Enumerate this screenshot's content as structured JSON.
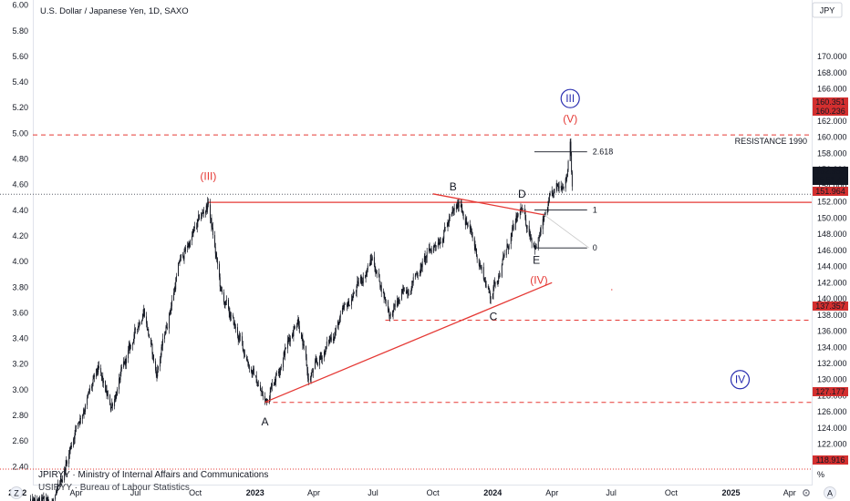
{
  "header": {
    "title": "U.S. Dollar / Japanese Yen, 1D, SAXO",
    "currency_button": "JPY"
  },
  "footer": {
    "source_line_1": "JPIRYY · Ministry of Internal Affairs and Communications",
    "source_line_2": "USIRYY · Bureau of Labour Statistics",
    "z_button": "Z",
    "a_button": "A",
    "percent_button": "%"
  },
  "colors": {
    "candle": "#131722",
    "annotation_red": "#e53935",
    "annotation_dark": "#131722",
    "circle_blue": "#2a2eb0",
    "price_tag_red": "#d32f2f",
    "price_tag_dark": "#131722"
  },
  "icons": [
    "settings-gear-icon"
  ],
  "chart_data": {
    "type": "candlestick",
    "title": "U.S. Dollar / Japanese Yen, 1D, SAXO",
    "x_ticks": [
      "2022",
      "Apr",
      "Jul",
      "Oct",
      "2023",
      "Apr",
      "Jul",
      "Oct",
      "2024",
      "Apr",
      "Jul",
      "Oct",
      "2025",
      "Apr"
    ],
    "right_axis": {
      "label": "JPY",
      "range": [
        117,
        177
      ],
      "ticks": [
        "170.000",
        "168.000",
        "166.000",
        "164.000",
        "162.000",
        "160.000",
        "158.000",
        "156.000",
        "154.000",
        "152.000",
        "150.000",
        "148.000",
        "146.000",
        "144.000",
        "142.000",
        "140.000",
        "138.000",
        "136.000",
        "134.000",
        "132.000",
        "130.000",
        "128.000",
        "126.000",
        "124.000",
        "122.000",
        "120.000"
      ]
    },
    "left_axis": {
      "range": [
        2.26,
        6.04
      ],
      "ticks": [
        "6.00",
        "5.80",
        "5.60",
        "5.40",
        "5.20",
        "5.00",
        "4.80",
        "4.60",
        "4.40",
        "4.20",
        "4.00",
        "3.80",
        "3.60",
        "3.40",
        "3.20",
        "3.00",
        "2.80",
        "2.60",
        "2.40"
      ]
    },
    "price_tags": [
      {
        "value": "160.351",
        "style": "red"
      },
      {
        "value": "160.236",
        "style": "red"
      },
      {
        "value": "152.952",
        "style": "dark",
        "sub": "05:51:40"
      },
      {
        "value": "151.964",
        "style": "red"
      },
      {
        "value": "137.357",
        "style": "red"
      },
      {
        "value": "127.177",
        "style": "red"
      },
      {
        "value": "118.916",
        "style": "red"
      }
    ],
    "anchor_points": [
      {
        "date": "2022-01-20",
        "price": 114.5
      },
      {
        "date": "2022-03-01",
        "price": 115.0
      },
      {
        "date": "2022-03-31",
        "price": 124.0
      },
      {
        "date": "2022-05-05",
        "price": 131.0
      },
      {
        "date": "2022-05-24",
        "price": 126.5
      },
      {
        "date": "2022-07-14",
        "price": 139.0
      },
      {
        "date": "2022-08-02",
        "price": 130.5
      },
      {
        "date": "2022-09-07",
        "price": 144.5
      },
      {
        "date": "2022-10-21",
        "price": 151.9
      },
      {
        "date": "2022-11-10",
        "price": 140.5
      },
      {
        "date": "2023-01-16",
        "price": 127.2
      },
      {
        "date": "2023-03-08",
        "price": 137.9
      },
      {
        "date": "2023-03-24",
        "price": 129.8
      },
      {
        "date": "2023-06-30",
        "price": 145.0
      },
      {
        "date": "2023-07-28",
        "price": 138.0
      },
      {
        "date": "2023-11-13",
        "price": 151.9
      },
      {
        "date": "2023-12-28",
        "price": 140.3
      },
      {
        "date": "2024-02-13",
        "price": 150.9
      },
      {
        "date": "2024-03-08",
        "price": 146.5
      },
      {
        "date": "2024-03-28",
        "price": 151.8
      },
      {
        "date": "2024-04-24",
        "price": 155.5
      },
      {
        "date": "2024-04-29",
        "price": 160.2
      },
      {
        "date": "2024-05-03",
        "price": 152.95
      }
    ],
    "horizontal_levels": [
      {
        "price": 160.3,
        "style": "dashed-red",
        "label": "RESISTANCE 1990"
      },
      {
        "price": 151.95,
        "style": "solid-red"
      },
      {
        "price": 152.95,
        "style": "dotted-dark"
      },
      {
        "price": 137.36,
        "style": "dashed-red"
      },
      {
        "price": 127.18,
        "style": "dashed-red"
      },
      {
        "price": 118.92,
        "style": "dotted-red"
      }
    ],
    "trendlines": [
      {
        "from": {
          "date": "2023-01-16",
          "price": 127.2
        },
        "to": {
          "date": "2024-04-01",
          "price": 142.0
        },
        "color": "red"
      },
      {
        "from": {
          "date": "2023-10-01",
          "price": 153.0
        },
        "to": {
          "date": "2024-03-20",
          "price": 150.4
        },
        "color": "red"
      }
    ],
    "fibonacci": {
      "levels": [
        {
          "label": "2.618",
          "price": 158.2
        },
        {
          "label": "1",
          "price": 151.0
        },
        {
          "label": "0",
          "price": 146.3
        }
      ]
    },
    "wave_labels": [
      {
        "text": "(III)",
        "date": "2022-10-21",
        "price": 155.2,
        "color": "red"
      },
      {
        "text": "A",
        "date": "2023-01-16",
        "price": 124.8,
        "color": "dark"
      },
      {
        "text": "B",
        "date": "2023-11-01",
        "price": 153.9,
        "color": "dark"
      },
      {
        "text": "C",
        "date": "2024-01-02",
        "price": 137.8,
        "color": "dark"
      },
      {
        "text": "D",
        "date": "2024-02-15",
        "price": 153.0,
        "color": "dark"
      },
      {
        "text": "E",
        "date": "2024-03-08",
        "price": 144.8,
        "color": "dark"
      },
      {
        "text": "(IV)",
        "date": "2024-03-12",
        "price": 142.3,
        "color": "red"
      },
      {
        "text": "(V)",
        "date": "2024-04-29",
        "price": 162.3,
        "color": "red"
      },
      {
        "text": "III",
        "date": "2024-04-29",
        "price": 164.8,
        "color": "blue",
        "circled": true
      },
      {
        "text": "IV",
        "date": "2025-01-15",
        "price": 130.0,
        "color": "blue",
        "circled": true
      }
    ]
  }
}
